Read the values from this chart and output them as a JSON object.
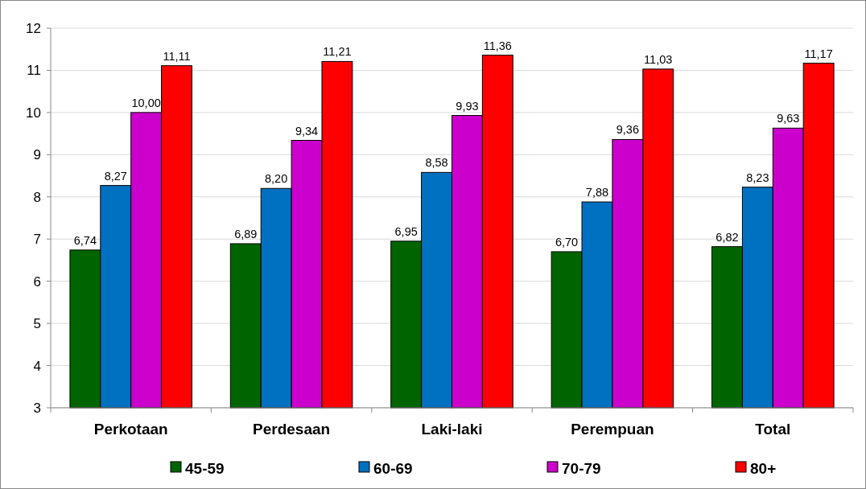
{
  "chart_data": {
    "type": "bar",
    "categories": [
      "Perkotaan",
      "Perdesaan",
      "Laki-laki",
      "Perempuan",
      "Total"
    ],
    "series": [
      {
        "name": "45-59",
        "color": "#006400",
        "values": [
          6.74,
          6.89,
          6.95,
          6.7,
          6.82
        ],
        "value_labels": [
          "6,74",
          "6,89",
          "6,95",
          "6,70",
          "6,82"
        ]
      },
      {
        "name": "60-69",
        "color": "#0070c0",
        "values": [
          8.27,
          8.2,
          8.58,
          7.88,
          8.23
        ],
        "value_labels": [
          "8,27",
          "8,20",
          "8,58",
          "7,88",
          "8,23"
        ]
      },
      {
        "name": "70-79",
        "color": "#cc00cc",
        "values": [
          10.0,
          9.34,
          9.93,
          9.36,
          9.63
        ],
        "value_labels": [
          "10,00",
          "9,34",
          "9,93",
          "9,36",
          "9,63"
        ]
      },
      {
        "name": "80+",
        "color": "#ff0000",
        "values": [
          11.11,
          11.21,
          11.36,
          11.03,
          11.17
        ],
        "value_labels": [
          "11,11",
          "11,21",
          "11,36",
          "11,03",
          "11,17"
        ]
      }
    ],
    "ylim": [
      3,
      12
    ],
    "yticks": [
      3,
      4,
      5,
      6,
      7,
      8,
      9,
      10,
      11,
      12
    ],
    "grid": "y",
    "legend": "bottom"
  }
}
